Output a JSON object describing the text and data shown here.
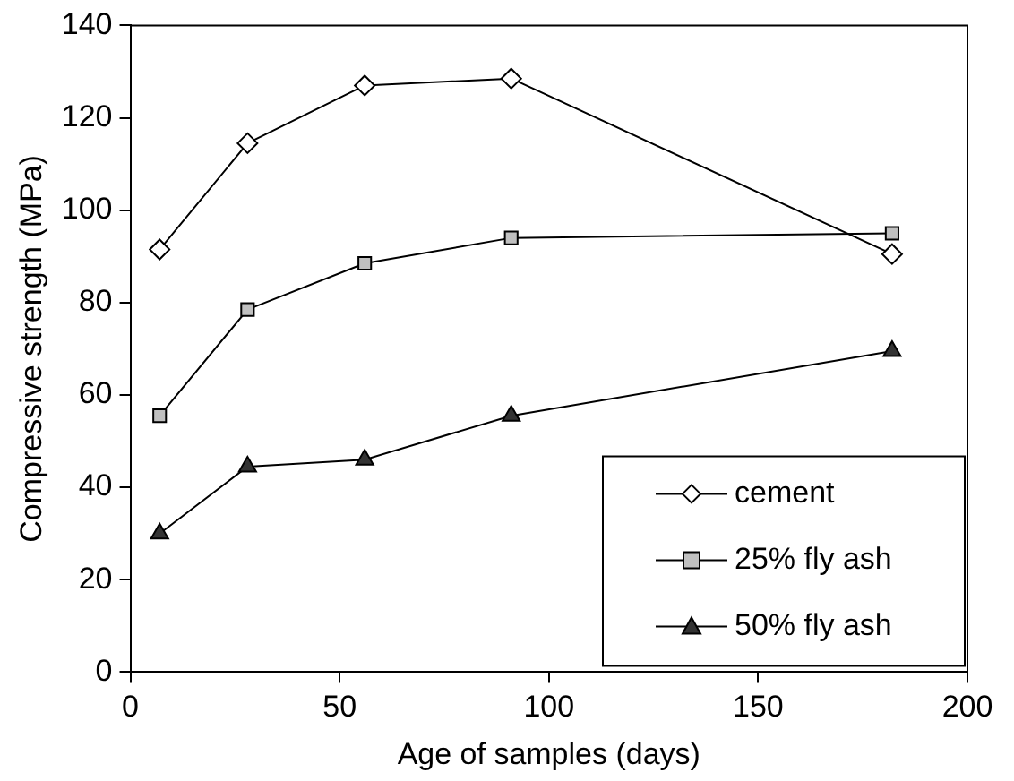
{
  "chart_data": {
    "type": "line",
    "xlabel": "Age of samples (days)",
    "ylabel": "Compressive strength (MPa)",
    "x": [
      7,
      28,
      56,
      91,
      182
    ],
    "series": [
      {
        "name": "cement",
        "color": "#ffffff",
        "marker": "diamond",
        "values": [
          91.5,
          114.5,
          127,
          128.5,
          90.5
        ]
      },
      {
        "name": "25% fly ash",
        "color": "#c0c0c0",
        "marker": "square",
        "values": [
          55.5,
          78.5,
          88.5,
          94,
          95
        ]
      },
      {
        "name": "50% fly ash",
        "color": "#333333",
        "marker": "triangle",
        "values": [
          30,
          44.5,
          46,
          55.5,
          69.5
        ]
      }
    ],
    "xlim": [
      0,
      200
    ],
    "xticks": [
      0,
      50,
      100,
      150,
      200
    ],
    "ylim": [
      0,
      140
    ],
    "yticks": [
      0,
      20,
      40,
      60,
      80,
      100,
      120,
      140
    ],
    "grid": false,
    "legend": "bottom right",
    "line_style": "solid"
  }
}
